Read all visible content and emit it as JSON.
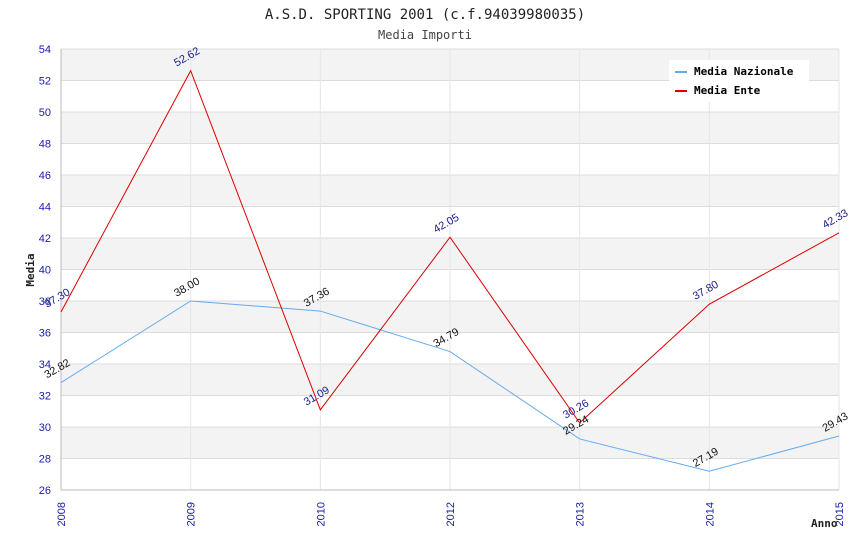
{
  "chart_data": {
    "type": "line",
    "title": "A.S.D. SPORTING 2001 (c.f.94039980035)",
    "subtitle": "Media Importi",
    "xlabel": "Anno",
    "ylabel": "Media",
    "categories": [
      "2008",
      "2009",
      "2010",
      "2012",
      "2013",
      "2014",
      "2015"
    ],
    "ylim": [
      26,
      54
    ],
    "yticks": [
      26,
      28,
      30,
      32,
      34,
      36,
      38,
      40,
      42,
      44,
      46,
      48,
      50,
      52,
      54
    ],
    "grid": true,
    "legend_position": "top-right",
    "series": [
      {
        "name": "Media Nazionale",
        "color": "#66aaee",
        "label_color": "#111111",
        "values": [
          32.82,
          38.0,
          37.36,
          34.79,
          29.24,
          27.19,
          29.43
        ],
        "labels": [
          "32.82",
          "38.00",
          "37.36",
          "34.79",
          "29.24",
          "27.19",
          "29.43"
        ]
      },
      {
        "name": "Media Ente",
        "color": "#dd0000",
        "label_color": "#1a1a8c",
        "values": [
          37.3,
          52.62,
          31.09,
          42.05,
          30.26,
          37.8,
          42.33
        ],
        "labels": [
          "37.30",
          "52.62",
          "31.09",
          "42.05",
          "30.26",
          "37.80",
          "42.33"
        ]
      }
    ]
  }
}
